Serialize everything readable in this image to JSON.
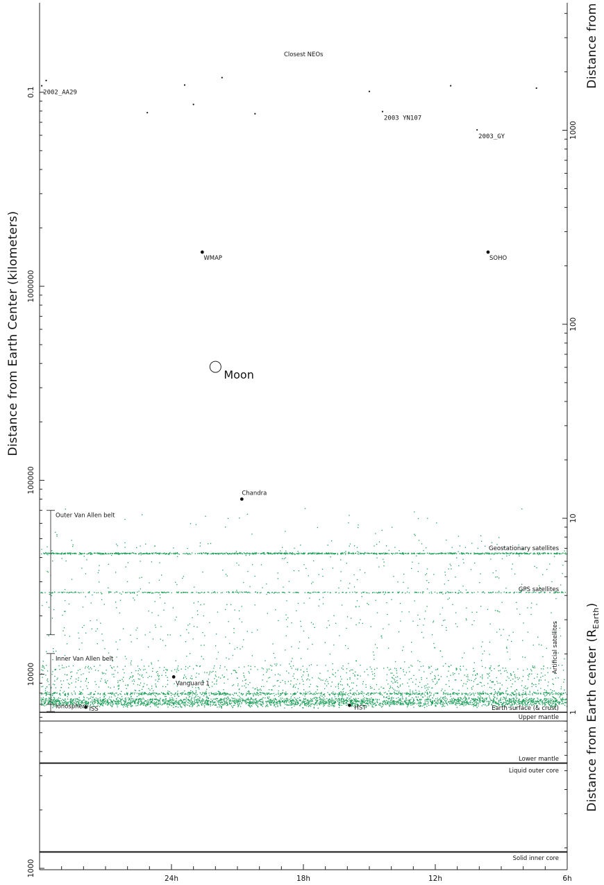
{
  "chart_data": {
    "type": "scatter",
    "title": "",
    "ylabel": "Distance from Earth Center (kilometers)",
    "ylabel_right_bottom": "Distance from Earth center (R",
    "ylabel_right_bottom_sub": "Earth",
    "ylabel_right_bottom_close": ")",
    "ylabel_right_top": "Distance from",
    "y_scale": "log",
    "ylim_km": [
      950,
      12000000
    ],
    "x_ticks": [
      "24h",
      "18h",
      "12h",
      "6h"
    ],
    "y_ticks_left": [
      "1000",
      "10000",
      "100000",
      "1000000",
      "0.1"
    ],
    "y_ticks_right": [
      "1",
      "10",
      "100",
      "1000"
    ],
    "neo_group_label": "Closest NEOs",
    "neo_labels": [
      {
        "label": "2002_AA29",
        "ra_h": 29.9,
        "dist_km": 10800000
      },
      {
        "label": "2003 YN107",
        "ra_h": 14.4,
        "dist_km": 7950000
      },
      {
        "label": "2003_GY",
        "ra_h": 10.1,
        "dist_km": 6400000
      }
    ],
    "neo_points": [
      {
        "ra_h": 29.7,
        "dist_km": 11500000
      },
      {
        "ra_h": 21.7,
        "dist_km": 11900000
      },
      {
        "ra_h": 23.4,
        "dist_km": 10900000
      },
      {
        "ra_h": 15.0,
        "dist_km": 10100000
      },
      {
        "ra_h": 11.3,
        "dist_km": 10800000
      },
      {
        "ra_h": 7.4,
        "dist_km": 10500000
      },
      {
        "ra_h": 23.0,
        "dist_km": 8650000
      },
      {
        "ra_h": 25.1,
        "dist_km": 7850000
      },
      {
        "ra_h": 20.2,
        "dist_km": 7750000
      }
    ],
    "objects": [
      {
        "label": "WMAP",
        "ra_h": 22.6,
        "dist_km": 1500000
      },
      {
        "label": "SOHO",
        "ra_h": 9.6,
        "dist_km": 1500000
      },
      {
        "label": "Moon",
        "ra_h": 22.0,
        "dist_km": 384400
      },
      {
        "label": "Chandra",
        "ra_h": 20.8,
        "dist_km": 80000
      },
      {
        "label": "Vanguard 1",
        "ra_h": 23.9,
        "dist_km": 9700
      },
      {
        "label": "ISS",
        "ra_h": 27.9,
        "dist_km": 6770
      },
      {
        "label": "HST",
        "ra_h": 15.9,
        "dist_km": 6920
      }
    ],
    "belts": [
      {
        "label": "Outer Van Allen belt",
        "from_km": 16000,
        "to_km": 70000
      },
      {
        "label": "Inner Van Allen belt",
        "from_km": 7000,
        "to_km": 12800
      },
      {
        "label": "Ionosphere",
        "from_km": 6430,
        "to_km": 7000
      }
    ],
    "orbit_bands": [
      {
        "label": "Geostationary satellites",
        "dist_km": 42164
      },
      {
        "label": "GPS satellites",
        "dist_km": 26560
      },
      {
        "label": "Artificial satellites",
        "dist_km": 7300
      }
    ],
    "layers": [
      {
        "label": "Earth surface (& crust)",
        "dist_km": 6371
      },
      {
        "label": "Upper mantle",
        "dist_km": 6000
      },
      {
        "label": "Lower mantle",
        "dist_km": 5700
      },
      {
        "label": "Liquid outer core",
        "dist_km": 3500
      },
      {
        "label": "Solid inner core",
        "dist_km": 1220
      }
    ],
    "series_color": "#1a9e57",
    "grid": false
  }
}
